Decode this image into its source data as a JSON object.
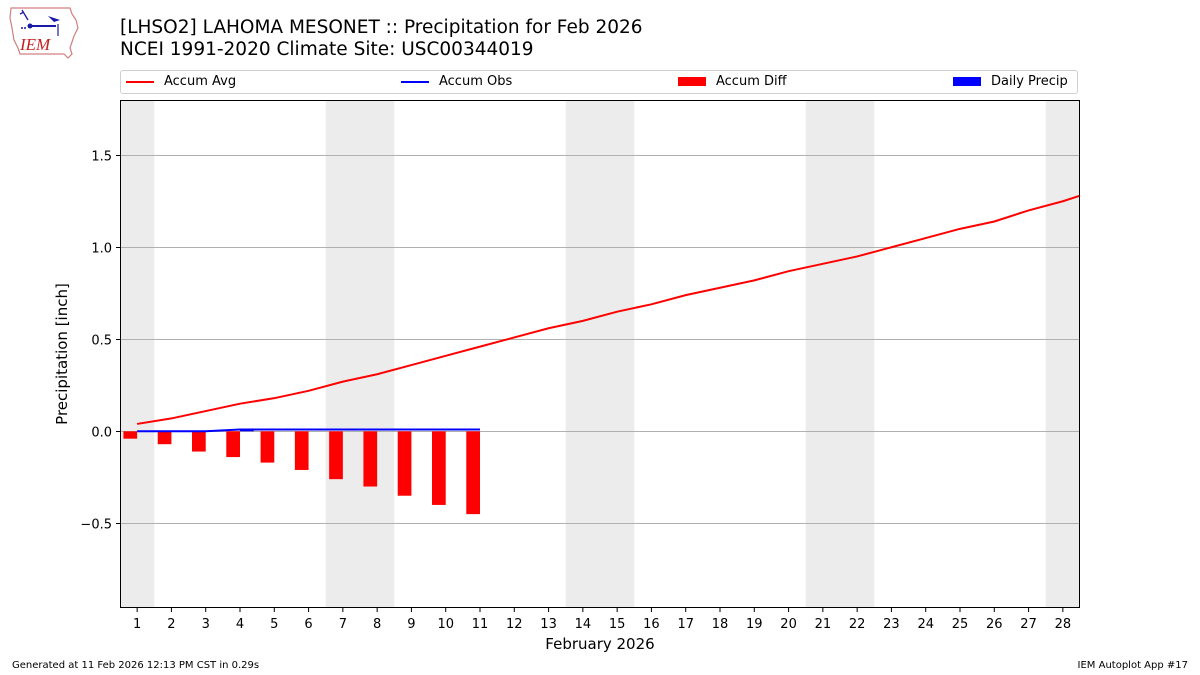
{
  "header": {
    "title_line1": "[LHSO2] LAHOMA MESONET :: Precipitation for Feb 2026",
    "title_line2": "NCEI 1991-2020 Climate Site: USC00344019",
    "logo_text": "IEM"
  },
  "legend": [
    {
      "label": "Accum Avg",
      "kind": "line",
      "color": "#ff0000"
    },
    {
      "label": "Accum Obs",
      "kind": "line",
      "color": "#0000ff"
    },
    {
      "label": "Accum Diff",
      "kind": "patch",
      "color": "#ff0000"
    },
    {
      "label": "Daily Precip",
      "kind": "patch",
      "color": "#0000ff"
    }
  ],
  "footer": {
    "generated": "Generated at 11 Feb 2026 12:13 PM CST in 0.29s",
    "app": "IEM Autoplot App #17"
  },
  "chart_data": {
    "type": "line",
    "title": "[LHSO2] LAHOMA MESONET :: Precipitation for Feb 2026",
    "subtitle": "NCEI 1991-2020 Climate Site: USC00344019",
    "xlabel": "February 2026",
    "ylabel": "Precipitation [inch]",
    "xlim": [
      0.5,
      28.5
    ],
    "ylim": [
      -0.96,
      1.8
    ],
    "yticks": [
      -0.5,
      0.0,
      0.5,
      1.0,
      1.5
    ],
    "ytick_labels": [
      "−0.5",
      "0.0",
      "0.5",
      "1.0",
      "1.5"
    ],
    "x": [
      1,
      2,
      3,
      4,
      5,
      6,
      7,
      8,
      9,
      10,
      11,
      12,
      13,
      14,
      15,
      16,
      17,
      18,
      19,
      20,
      21,
      22,
      23,
      24,
      25,
      26,
      27,
      28
    ],
    "weekend_shading": [
      [
        0.5,
        1.5
      ],
      [
        6.5,
        8.5
      ],
      [
        13.5,
        15.5
      ],
      [
        20.5,
        22.5
      ],
      [
        27.5,
        28.5
      ]
    ],
    "grid": "y",
    "legend_position": "top",
    "series": [
      {
        "name": "Accum Avg",
        "type": "line",
        "color": "#ff0000",
        "values": [
          0.04,
          0.07,
          0.11,
          0.15,
          0.18,
          0.22,
          0.27,
          0.31,
          0.36,
          0.41,
          0.46,
          0.51,
          0.56,
          0.6,
          0.65,
          0.69,
          0.74,
          0.78,
          0.82,
          0.87,
          0.91,
          0.95,
          1.0,
          1.05,
          1.1,
          1.14,
          1.2,
          1.25
        ],
        "end_value_at_28_5": 1.28
      },
      {
        "name": "Accum Obs",
        "type": "line",
        "color": "#0000ff",
        "values": [
          0.0,
          0.0,
          0.0,
          0.01,
          0.01,
          0.01,
          0.01,
          0.01,
          0.01,
          0.01,
          0.01
        ]
      },
      {
        "name": "Accum Diff",
        "type": "bar",
        "color": "#ff0000",
        "values": [
          -0.04,
          -0.07,
          -0.11,
          -0.14,
          -0.17,
          -0.21,
          -0.26,
          -0.3,
          -0.35,
          -0.4,
          -0.45
        ]
      },
      {
        "name": "Daily Precip",
        "type": "bar",
        "color": "#0000ff",
        "values": [
          0.0,
          0.0,
          0.0,
          0.01,
          0.0,
          0.0,
          0.0,
          0.0,
          0.0,
          0.0,
          0.0
        ]
      }
    ]
  }
}
